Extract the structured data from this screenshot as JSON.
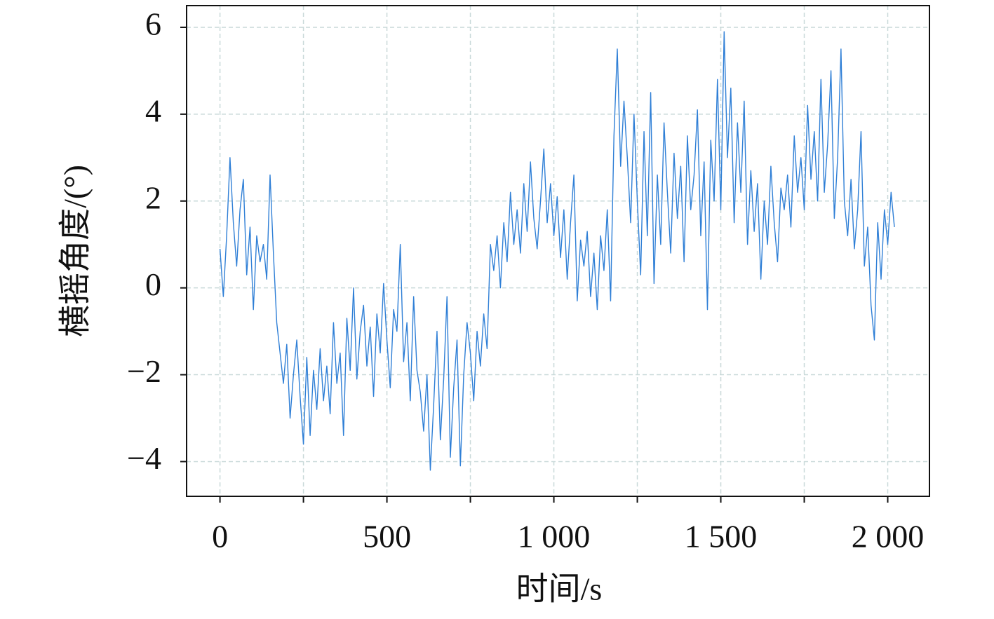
{
  "chart_data": {
    "type": "line",
    "xlabel": "时间/s",
    "ylabel": "横摇角度/(°)",
    "x": [
      0,
      10,
      20,
      30,
      40,
      50,
      60,
      70,
      80,
      90,
      100,
      110,
      120,
      130,
      140,
      150,
      160,
      170,
      180,
      190,
      200,
      210,
      220,
      230,
      240,
      250,
      260,
      270,
      280,
      290,
      300,
      310,
      320,
      330,
      340,
      350,
      360,
      370,
      380,
      390,
      400,
      410,
      420,
      430,
      440,
      450,
      460,
      470,
      480,
      490,
      500,
      510,
      520,
      530,
      540,
      550,
      560,
      570,
      580,
      590,
      600,
      610,
      620,
      630,
      640,
      650,
      660,
      670,
      680,
      690,
      700,
      710,
      720,
      730,
      740,
      750,
      760,
      770,
      780,
      790,
      800,
      810,
      820,
      830,
      840,
      850,
      860,
      870,
      880,
      890,
      900,
      910,
      920,
      930,
      940,
      950,
      960,
      970,
      980,
      990,
      1000,
      1010,
      1020,
      1030,
      1040,
      1050,
      1060,
      1070,
      1080,
      1090,
      1100,
      1110,
      1120,
      1130,
      1140,
      1150,
      1160,
      1170,
      1180,
      1190,
      1200,
      1210,
      1220,
      1230,
      1240,
      1250,
      1260,
      1270,
      1280,
      1290,
      1300,
      1310,
      1320,
      1330,
      1340,
      1350,
      1360,
      1370,
      1380,
      1390,
      1400,
      1410,
      1420,
      1430,
      1440,
      1450,
      1460,
      1470,
      1480,
      1490,
      1500,
      1510,
      1520,
      1530,
      1540,
      1550,
      1560,
      1570,
      1580,
      1590,
      1600,
      1610,
      1620,
      1630,
      1640,
      1650,
      1660,
      1670,
      1680,
      1690,
      1700,
      1710,
      1720,
      1730,
      1740,
      1750,
      1760,
      1770,
      1780,
      1790,
      1800,
      1810,
      1820,
      1830,
      1840,
      1850,
      1860,
      1870,
      1880,
      1890,
      1900,
      1910,
      1920,
      1930,
      1940,
      1950,
      1960,
      1970,
      1980,
      1990,
      2000,
      2010,
      2020
    ],
    "values": [
      0.9,
      -0.2,
      1.2,
      3.0,
      1.5,
      0.5,
      1.8,
      2.5,
      0.3,
      1.4,
      -0.5,
      1.2,
      0.6,
      1.0,
      0.2,
      2.6,
      0.8,
      -0.8,
      -1.5,
      -2.2,
      -1.3,
      -3.0,
      -2.0,
      -1.2,
      -2.5,
      -3.6,
      -1.6,
      -3.4,
      -1.9,
      -2.8,
      -1.4,
      -2.6,
      -1.8,
      -2.9,
      -0.8,
      -2.2,
      -1.5,
      -3.4,
      -0.7,
      -1.9,
      0.0,
      -2.1,
      -1.0,
      -0.4,
      -1.8,
      -0.9,
      -2.5,
      -0.6,
      -1.5,
      0.1,
      -1.2,
      -2.3,
      -0.5,
      -1.0,
      1.0,
      -1.7,
      -0.8,
      -2.6,
      -0.2,
      -1.9,
      -2.4,
      -3.3,
      -2.0,
      -4.2,
      -2.7,
      -1.0,
      -3.5,
      -2.1,
      -0.2,
      -3.9,
      -2.3,
      -1.2,
      -4.1,
      -2.0,
      -0.8,
      -1.5,
      -2.6,
      -1.0,
      -1.8,
      -0.6,
      -1.4,
      1.0,
      0.4,
      1.2,
      0.0,
      1.5,
      0.6,
      2.2,
      1.0,
      1.8,
      0.8,
      2.4,
      1.3,
      2.9,
      1.6,
      0.9,
      2.0,
      3.2,
      1.5,
      2.4,
      1.2,
      2.1,
      0.7,
      1.8,
      0.2,
      1.5,
      2.6,
      -0.3,
      1.1,
      0.5,
      1.3,
      -0.2,
      0.8,
      -0.5,
      1.2,
      0.4,
      1.8,
      -0.3,
      3.5,
      5.5,
      2.8,
      4.3,
      3.0,
      1.5,
      4.0,
      2.0,
      0.3,
      3.6,
      1.2,
      4.5,
      0.1,
      2.6,
      1.0,
      3.8,
      2.2,
      0.8,
      3.1,
      1.6,
      2.8,
      0.6,
      3.5,
      1.8,
      2.6,
      4.1,
      1.2,
      2.9,
      -0.5,
      3.4,
      2.0,
      4.8,
      1.8,
      5.9,
      3.0,
      4.6,
      1.5,
      3.8,
      2.2,
      4.3,
      1.0,
      2.7,
      1.3,
      2.4,
      0.2,
      2.0,
      1.0,
      2.8,
      1.5,
      0.6,
      2.3,
      1.8,
      2.6,
      1.4,
      3.5,
      2.2,
      3.0,
      1.8,
      4.2,
      2.5,
      3.6,
      2.0,
      4.8,
      2.2,
      3.3,
      5.0,
      1.6,
      3.0,
      5.5,
      2.0,
      1.2,
      2.5,
      0.9,
      1.8,
      3.6,
      0.5,
      1.4,
      -0.4,
      -1.2,
      1.5,
      0.2,
      1.8,
      1.0,
      2.2,
      1.4
    ],
    "color": "#2f7fd6",
    "xlim": [
      -100,
      2125
    ],
    "ylim": [
      -4.8,
      6.5
    ],
    "xticks": [
      0,
      500,
      {
        "value": 1000,
        "label": "1 000"
      },
      {
        "value": 1500,
        "label": "1 500"
      },
      {
        "value": 2000,
        "label": "2 000"
      }
    ],
    "xminor_ticks": [
      250,
      750,
      1250,
      1750
    ],
    "yticks": [
      {
        "value": -4,
        "label": "−4"
      },
      {
        "value": -2,
        "label": "−2"
      },
      0,
      2,
      4,
      6
    ],
    "grid": true
  }
}
